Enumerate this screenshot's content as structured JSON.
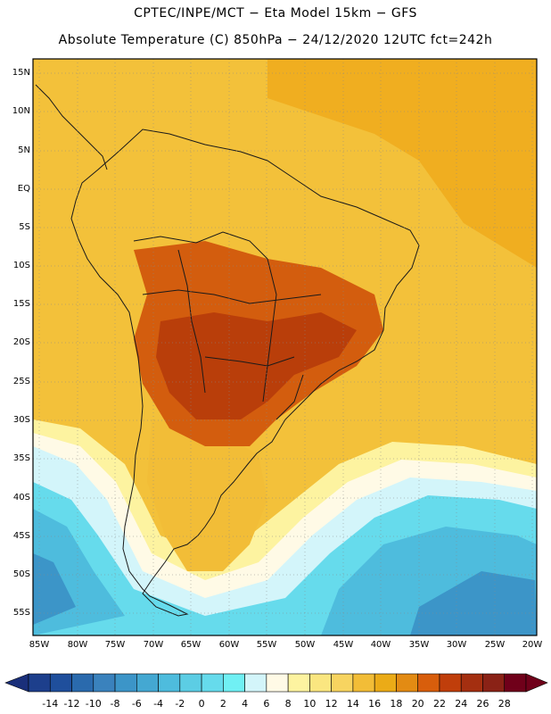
{
  "header": {
    "line1": "CPTEC/INPE/MCT −  Eta Model 15km − GFS",
    "line2": "Absolute Temperature (C) 850hPa − 24/12/2020 12UTC fct=242h"
  },
  "map": {
    "lat_labels": [
      "15N",
      "10N",
      "5N",
      "EQ",
      "5S",
      "10S",
      "15S",
      "20S",
      "25S",
      "30S",
      "35S",
      "40S",
      "45S",
      "50S",
      "55S"
    ],
    "lon_labels": [
      "85W",
      "80W",
      "75W",
      "70W",
      "65W",
      "60W",
      "55W",
      "50W",
      "45W",
      "40W",
      "35W",
      "30W",
      "25W",
      "20W"
    ],
    "extent": {
      "lon_min": -86,
      "lon_max": -20,
      "lat_min": -58,
      "lat_max": 16
    }
  },
  "colorbar": {
    "labels": [
      "-14",
      "-12",
      "-10",
      "-8",
      "-6",
      "-4",
      "-2",
      "0",
      "2",
      "4",
      "6",
      "8",
      "10",
      "12",
      "14",
      "16",
      "18",
      "20",
      "22",
      "24",
      "26",
      "28"
    ],
    "colors": [
      "#1d3f8c",
      "#1f4f9c",
      "#2a6aad",
      "#3a82bd",
      "#3c95c8",
      "#44a8d2",
      "#4ebcdd",
      "#5ccde4",
      "#66dbec",
      "#70f0f4",
      "#d3f5fa",
      "#fffae6",
      "#fdf3a0",
      "#fae680",
      "#f7d460",
      "#f2bd37",
      "#ebab17",
      "#e38b13",
      "#d85e0c",
      "#c03e0b",
      "#a42f10",
      "#8a2216",
      "#70001a"
    ],
    "left_arrow_color": "#1a2f7a",
    "right_arrow_color": "#70001a"
  },
  "regions": {
    "background": "#f3c13a",
    "north_atlantic": "#f0ae20",
    "warm_core": "#d35d0e",
    "hot_core": "#b93e0a",
    "patagonia": "#f2bd37",
    "cool_ocean": "#66dbec",
    "cold_ocean": "#4ebcdd",
    "coldest": "#3c95c8",
    "pale": "#fdf3a0",
    "white_band": "#fffae6",
    "light_cyan": "#d3f5fa"
  }
}
